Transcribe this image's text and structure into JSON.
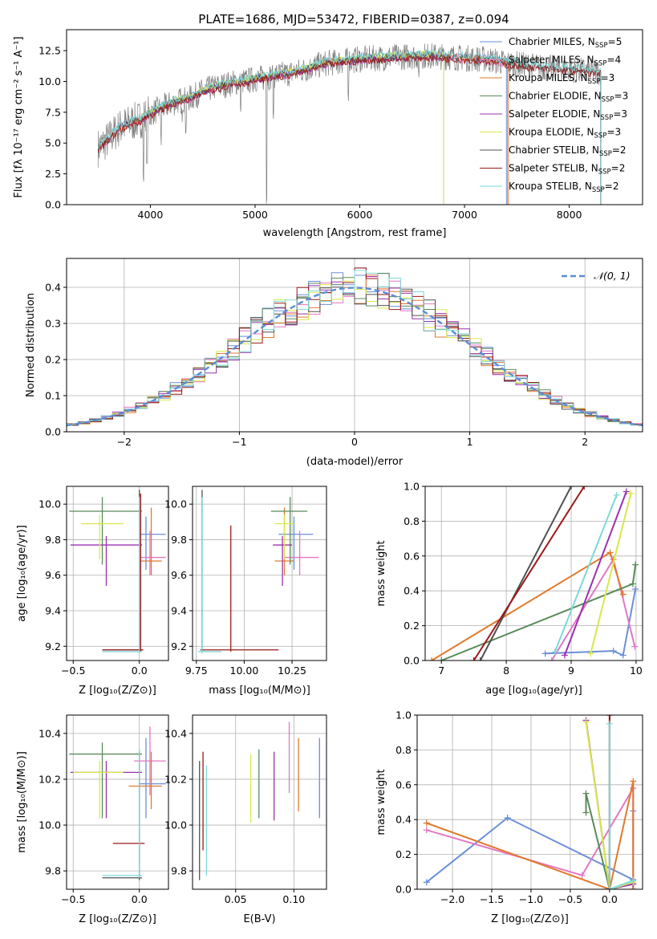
{
  "figure_title": "PLATE=1686, MJD=53472, FIBERID=0387, z=0.094",
  "colors": {
    "Chabrier MILES": "#6a8fd9",
    "Salpeter MILES": "#e377c2",
    "Kroupa MILES": "#e07a2e",
    "Chabrier ELODIE": "#5a8a5a",
    "Salpeter ELODIE": "#9b30b0",
    "Kroupa ELODIE": "#d8e84a",
    "Chabrier STELIB": "#505050",
    "Salpeter STELIB": "#9a1a1a",
    "Kroupa STELIB": "#7dd8d8",
    "gauss": "#5b8dd6"
  },
  "chart_data": [
    {
      "id": "spectrum",
      "type": "line",
      "title": "PLATE=1686, MJD=53472, FIBERID=0387, z=0.094",
      "xlabel": "wavelength [Angstrom, rest frame]",
      "ylabel": "Flux [fλ 10⁻¹⁷ erg cm⁻² s⁻¹ A⁻¹]",
      "xlim": [
        3200,
        8700
      ],
      "ylim": [
        0,
        14.2
      ],
      "xticks": [
        4000,
        5000,
        6000,
        7000,
        8000
      ],
      "yticks": [
        0.0,
        2.5,
        5.0,
        7.5,
        10.0,
        12.5
      ],
      "legend_position": "right",
      "legend": [
        {
          "name": "Chabrier MILES, N",
          "sub": "SSP",
          "tail": "=5"
        },
        {
          "name": "Salpeter MILES, N",
          "sub": "SSP",
          "tail": "=4"
        },
        {
          "name": "Kroupa MILES, N",
          "sub": "SSP",
          "tail": "=3"
        },
        {
          "name": "Chabrier ELODIE, N",
          "sub": "SSP",
          "tail": "=3"
        },
        {
          "name": "Salpeter ELODIE, N",
          "sub": "SSP",
          "tail": "=3"
        },
        {
          "name": "Kroupa ELODIE, N",
          "sub": "SSP",
          "tail": "=3"
        },
        {
          "name": "Chabrier STELIB, N",
          "sub": "SSP",
          "tail": "=2"
        },
        {
          "name": "Salpeter STELIB, N",
          "sub": "SSP",
          "tail": "=2"
        },
        {
          "name": "Kroupa STELIB, N",
          "sub": "SSP",
          "tail": "=2"
        }
      ],
      "continuum": [
        [
          3500,
          4.6
        ],
        [
          3600,
          5.3
        ],
        [
          3700,
          6.2
        ],
        [
          3800,
          6.6
        ],
        [
          3900,
          6.9
        ],
        [
          4000,
          7.4
        ],
        [
          4100,
          7.8
        ],
        [
          4200,
          8.2
        ],
        [
          4300,
          8.5
        ],
        [
          4400,
          8.7
        ],
        [
          4500,
          9.2
        ],
        [
          4600,
          9.5
        ],
        [
          4700,
          9.7
        ],
        [
          4800,
          9.9
        ],
        [
          4900,
          10.0
        ],
        [
          5000,
          10.2
        ],
        [
          5100,
          10.3
        ],
        [
          5200,
          10.5
        ],
        [
          5300,
          10.6
        ],
        [
          5400,
          10.8
        ],
        [
          5500,
          11.0
        ],
        [
          5600,
          11.3
        ],
        [
          5700,
          11.5
        ],
        [
          5800,
          11.6
        ],
        [
          5900,
          11.7
        ],
        [
          6000,
          11.8
        ],
        [
          6200,
          11.9
        ],
        [
          6400,
          12.0
        ],
        [
          6600,
          12.1
        ],
        [
          6800,
          12.0
        ],
        [
          7000,
          11.9
        ],
        [
          7200,
          11.8
        ],
        [
          7400,
          11.5
        ],
        [
          7600,
          11.3
        ],
        [
          7800,
          11.1
        ],
        [
          8000,
          11.0
        ],
        [
          8200,
          10.8
        ],
        [
          8300,
          10.8
        ]
      ],
      "absorption": [
        [
          3934,
          1.5
        ],
        [
          3968,
          2.0
        ],
        [
          4102,
          4.3
        ],
        [
          4300,
          6.5
        ],
        [
          4340,
          5.5
        ],
        [
          4861,
          6.5
        ],
        [
          5110,
          0.0
        ],
        [
          5175,
          6.0
        ],
        [
          5890,
          8.0
        ],
        [
          6563,
          9.5
        ]
      ]
    },
    {
      "id": "residuals",
      "type": "histogram",
      "xlabel": "(data-model)/error",
      "ylabel": "Normed distribution",
      "xlim": [
        -2.5,
        2.5
      ],
      "ylim": [
        0,
        0.48
      ],
      "xticks": [
        -2,
        -1,
        0,
        1,
        2
      ],
      "yticks": [
        0.0,
        0.1,
        0.2,
        0.3,
        0.4
      ],
      "legend": [
        "𝒩(0, 1)"
      ],
      "legend_position": "top-right",
      "gaussian": {
        "mean": 0,
        "sigma": 1
      }
    },
    {
      "id": "age-vs-Z",
      "type": "errorbar",
      "xlabel": "Z [log₁₀(Z/Z⊙)]",
      "ylabel": "age  [log₁₀(age/yr)]",
      "xlim": [
        -0.55,
        0.22
      ],
      "ylim": [
        9.12,
        10.1
      ],
      "xticks": [
        -0.5,
        0.0
      ],
      "yticks": [
        9.2,
        9.4,
        9.6,
        9.8,
        10.0
      ],
      "points": [
        {
          "model": "Chabrier MILES",
          "x": 0.05,
          "y": 9.83,
          "xerr": [
            0.05,
            0.15
          ],
          "yerr": [
            0.2,
            0.1
          ]
        },
        {
          "model": "Salpeter MILES",
          "x": 0.08,
          "y": 9.7,
          "xerr": [
            0.07,
            0.12
          ],
          "yerr": [
            0.1,
            0.15
          ]
        },
        {
          "model": "Kroupa MILES",
          "x": 0.09,
          "y": 9.68,
          "xerr": [
            0.09,
            0.08
          ],
          "yerr": [
            0.08,
            0.3
          ]
        },
        {
          "model": "Chabrier ELODIE",
          "x": -0.28,
          "y": 9.96,
          "xerr": [
            0.25,
            0.3
          ],
          "yerr": [
            0.3,
            0.08
          ]
        },
        {
          "model": "Salpeter ELODIE",
          "x": -0.25,
          "y": 9.77,
          "xerr": [
            0.27,
            0.27
          ],
          "yerr": [
            0.23,
            0.05
          ]
        },
        {
          "model": "Kroupa ELODIE",
          "x": -0.3,
          "y": 9.89,
          "xerr": [
            0.14,
            0.18
          ],
          "yerr": [
            0.2,
            0.05
          ]
        },
        {
          "model": "Chabrier STELIB",
          "x": 0.0,
          "y": 9.18,
          "xerr": [
            0.28,
            0.02
          ],
          "yerr": [
            0.01,
            0.9
          ]
        },
        {
          "model": "Salpeter STELIB",
          "x": 0.01,
          "y": 9.18,
          "xerr": [
            0.29,
            0.02
          ],
          "yerr": [
            0.01,
            0.88
          ]
        },
        {
          "model": "Kroupa STELIB",
          "x": 0.0,
          "y": 9.17,
          "xerr": [
            0.28,
            0.02
          ],
          "yerr": [
            0.01,
            0.87
          ]
        }
      ]
    },
    {
      "id": "age-vs-mass",
      "type": "errorbar",
      "xlabel": "mass [log₁₀(M/M⊙)]",
      "ylabel": "",
      "xlim": [
        9.73,
        10.43
      ],
      "ylim": [
        9.12,
        10.1
      ],
      "xticks": [
        9.75,
        10.0,
        10.25
      ],
      "yticks": [
        9.2,
        9.4,
        9.6,
        9.8,
        10.0
      ],
      "points": [
        {
          "model": "Chabrier MILES",
          "x": 10.26,
          "y": 9.83,
          "xerr": [
            0.08,
            0.1
          ],
          "yerr": [
            0.2,
            0.1
          ]
        },
        {
          "model": "Salpeter MILES",
          "x": 10.29,
          "y": 9.7,
          "xerr": [
            0.08,
            0.1
          ],
          "yerr": [
            0.1,
            0.15
          ]
        },
        {
          "model": "Kroupa MILES",
          "x": 10.21,
          "y": 9.68,
          "xerr": [
            0.05,
            0.05
          ],
          "yerr": [
            0.08,
            0.3
          ]
        },
        {
          "model": "Chabrier ELODIE",
          "x": 10.24,
          "y": 9.96,
          "xerr": [
            0.1,
            0.09
          ],
          "yerr": [
            0.3,
            0.08
          ]
        },
        {
          "model": "Salpeter ELODIE",
          "x": 10.2,
          "y": 9.77,
          "xerr": [
            0.05,
            0.05
          ],
          "yerr": [
            0.23,
            0.05
          ]
        },
        {
          "model": "Kroupa ELODIE",
          "x": 10.21,
          "y": 9.89,
          "xerr": [
            0.05,
            0.05
          ],
          "yerr": [
            0.2,
            0.05
          ]
        },
        {
          "model": "Chabrier STELIB",
          "x": 9.78,
          "y": 9.18,
          "xerr": [
            0.01,
            0.01
          ],
          "yerr": [
            0.01,
            0.9
          ]
        },
        {
          "model": "Salpeter STELIB",
          "x": 9.93,
          "y": 9.18,
          "xerr": [
            0.15,
            0.25
          ],
          "yerr": [
            0.01,
            0.7
          ]
        },
        {
          "model": "Kroupa STELIB",
          "x": 9.78,
          "y": 9.17,
          "xerr": [
            0.02,
            0.1
          ],
          "yerr": [
            0.01,
            0.87
          ]
        }
      ]
    },
    {
      "id": "weight-vs-age",
      "type": "line",
      "xlabel": "age  [log₁₀(age/yr)]",
      "ylabel": "mass weight",
      "xlim": [
        6.75,
        10.1
      ],
      "ylim": [
        0,
        1.0
      ],
      "xticks": [
        7,
        8,
        9,
        10
      ],
      "yticks": [
        0.0,
        0.2,
        0.4,
        0.6,
        0.8,
        1.0
      ],
      "series": [
        {
          "model": "Chabrier MILES",
          "x": [
            8.6,
            9.65,
            9.8,
            9.99
          ],
          "y": [
            0.04,
            0.055,
            0.03,
            0.41
          ]
        },
        {
          "model": "Salpeter MILES",
          "x": [
            8.7,
            9.65,
            9.98
          ],
          "y": [
            0.0,
            0.58,
            0.08
          ]
        },
        {
          "model": "Kroupa MILES",
          "x": [
            6.85,
            9.6,
            9.8
          ],
          "y": [
            0.0,
            0.62,
            0.38
          ]
        },
        {
          "model": "Chabrier ELODIE",
          "x": [
            7.0,
            9.95,
            9.99
          ],
          "y": [
            0.0,
            0.44,
            0.55
          ]
        },
        {
          "model": "Salpeter ELODIE",
          "x": [
            8.9,
            9.85
          ],
          "y": [
            0.03,
            0.97
          ]
        },
        {
          "model": "Kroupa ELODIE",
          "x": [
            9.3,
            9.92
          ],
          "y": [
            0.04,
            0.96
          ]
        },
        {
          "model": "Chabrier STELIB",
          "x": [
            7.6,
            9.0
          ],
          "y": [
            0.0,
            1.0
          ]
        },
        {
          "model": "Salpeter STELIB",
          "x": [
            7.5,
            9.2
          ],
          "y": [
            0.0,
            1.0
          ]
        },
        {
          "model": "Kroupa STELIB",
          "x": [
            8.75,
            9.7
          ],
          "y": [
            0.05,
            0.95
          ]
        }
      ]
    },
    {
      "id": "mass-vs-Z",
      "type": "errorbar",
      "xlabel": "Z [log₁₀(Z/Z⊙)]",
      "ylabel": "mass [log₁₀(M/M⊙)]",
      "xlim": [
        -0.55,
        0.22
      ],
      "ylim": [
        9.72,
        10.48
      ],
      "xticks": [
        -0.5,
        0.0
      ],
      "yticks": [
        9.8,
        10.0,
        10.2,
        10.4
      ],
      "points": [
        {
          "model": "Chabrier MILES",
          "x": 0.05,
          "y": 10.18,
          "xerr": [
            0.05,
            0.15
          ],
          "yerr": [
            0.15,
            0.2
          ]
        },
        {
          "model": "Salpeter MILES",
          "x": 0.08,
          "y": 10.28,
          "xerr": [
            0.12,
            0.12
          ],
          "yerr": [
            0.15,
            0.15
          ]
        },
        {
          "model": "Kroupa MILES",
          "x": 0.09,
          "y": 10.17,
          "xerr": [
            0.17,
            0.08
          ],
          "yerr": [
            0.1,
            0.15
          ]
        },
        {
          "model": "Chabrier ELODIE",
          "x": -0.28,
          "y": 10.31,
          "xerr": [
            0.25,
            0.3
          ],
          "yerr": [
            0.28,
            0.05
          ]
        },
        {
          "model": "Salpeter ELODIE",
          "x": -0.25,
          "y": 10.23,
          "xerr": [
            0.27,
            0.27
          ],
          "yerr": [
            0.2,
            0.05
          ]
        },
        {
          "model": "Kroupa ELODIE",
          "x": -0.3,
          "y": 10.23,
          "xerr": [
            0.2,
            0.18
          ],
          "yerr": [
            0.2,
            0.05
          ]
        },
        {
          "model": "Chabrier STELIB",
          "x": 0.0,
          "y": 9.77,
          "xerr": [
            0.28,
            0.02
          ],
          "yerr": [
            0.01,
            0.55
          ]
        },
        {
          "model": "Salpeter STELIB",
          "x": -0.1,
          "y": 9.92,
          "xerr": [
            0.1,
            0.14
          ],
          "yerr": [
            0.0,
            0.0
          ]
        },
        {
          "model": "Kroupa STELIB",
          "x": 0.0,
          "y": 9.78,
          "xerr": [
            0.28,
            0.02
          ],
          "yerr": [
            0.01,
            0.55
          ]
        }
      ]
    },
    {
      "id": "mass-vs-ebv",
      "type": "errorbar",
      "xlabel": "E(B-V)",
      "ylabel": "",
      "xlim": [
        0.013,
        0.128
      ],
      "ylim": [
        9.72,
        10.48
      ],
      "xticks": [
        0.05,
        0.1
      ],
      "yticks": [
        9.8,
        10.0,
        10.2,
        10.4
      ],
      "points": [
        {
          "model": "Chabrier MILES",
          "x": 0.122,
          "y": 10.2,
          "yerr": [
            0.17,
            0.18
          ]
        },
        {
          "model": "Salpeter MILES",
          "x": 0.096,
          "y": 10.3,
          "yerr": [
            0.16,
            0.15
          ]
        },
        {
          "model": "Kroupa MILES",
          "x": 0.104,
          "y": 10.2,
          "yerr": [
            0.14,
            0.18
          ]
        },
        {
          "model": "Chabrier ELODIE",
          "x": 0.07,
          "y": 10.19,
          "yerr": [
            0.16,
            0.14
          ]
        },
        {
          "model": "Salpeter ELODIE",
          "x": 0.083,
          "y": 10.18,
          "yerr": [
            0.16,
            0.14
          ]
        },
        {
          "model": "Kroupa ELODIE",
          "x": 0.063,
          "y": 10.16,
          "yerr": [
            0.15,
            0.15
          ]
        },
        {
          "model": "Chabrier STELIB",
          "x": 0.019,
          "y": 10.0,
          "yerr": [
            0.24,
            0.28
          ]
        },
        {
          "model": "Salpeter STELIB",
          "x": 0.022,
          "y": 10.1,
          "yerr": [
            0.21,
            0.22
          ]
        },
        {
          "model": "Kroupa STELIB",
          "x": 0.025,
          "y": 10.0,
          "yerr": [
            0.22,
            0.26
          ]
        }
      ]
    },
    {
      "id": "weight-vs-Z",
      "type": "line",
      "xlabel": "Z [log₁₀(Z/Z⊙)]",
      "ylabel": "mass weight",
      "xlim": [
        -2.45,
        0.42
      ],
      "ylim": [
        0,
        1.0
      ],
      "xticks": [
        -2.0,
        -1.5,
        -1.0,
        -0.5,
        0.0
      ],
      "yticks": [
        0.0,
        0.2,
        0.4,
        0.6,
        0.8,
        1.0
      ],
      "series": [
        {
          "model": "Chabrier MILES",
          "x": [
            -2.33,
            -1.3,
            0.3,
            0.3,
            0.3
          ],
          "y": [
            0.04,
            0.41,
            0.055,
            0.45,
            0.03
          ]
        },
        {
          "model": "Salpeter MILES",
          "x": [
            -2.33,
            -0.35,
            0.3,
            0.3
          ],
          "y": [
            0.34,
            0.08,
            0.58,
            0.0
          ]
        },
        {
          "model": "Kroupa MILES",
          "x": [
            -2.33,
            0.0,
            0.3,
            0.3
          ],
          "y": [
            0.38,
            0.0,
            0.62,
            0.0
          ]
        },
        {
          "model": "Chabrier ELODIE",
          "x": [
            -0.3,
            -0.3,
            0.0
          ],
          "y": [
            0.44,
            0.55,
            0.0
          ]
        },
        {
          "model": "Salpeter ELODIE",
          "x": [
            -0.3,
            0.0,
            0.3
          ],
          "y": [
            0.97,
            0.0,
            0.03
          ]
        },
        {
          "model": "Kroupa ELODIE",
          "x": [
            -0.3,
            0.0,
            0.3
          ],
          "y": [
            0.96,
            0.0,
            0.04
          ]
        },
        {
          "model": "Chabrier STELIB",
          "x": [
            0.0,
            0.0
          ],
          "y": [
            0.0,
            1.0
          ]
        },
        {
          "model": "Salpeter STELIB",
          "x": [
            0.0,
            0.0
          ],
          "y": [
            0.0,
            1.0
          ]
        },
        {
          "model": "Kroupa STELIB",
          "x": [
            0.0,
            0.0,
            0.3
          ],
          "y": [
            0.95,
            0.0,
            0.05
          ]
        }
      ]
    }
  ]
}
